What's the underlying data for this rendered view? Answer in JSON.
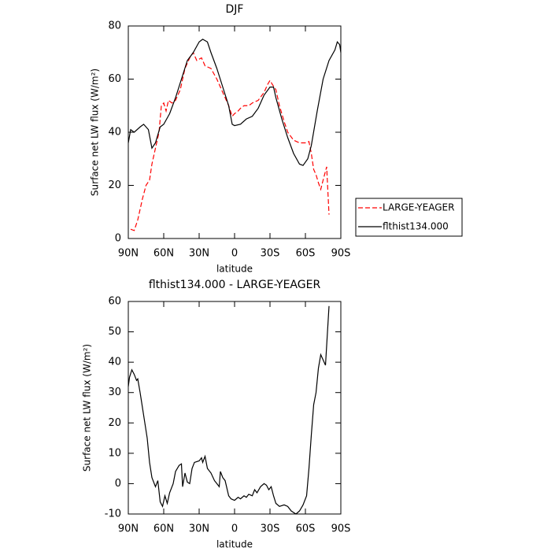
{
  "chart_data": [
    {
      "type": "line",
      "title": "DJF",
      "x_label": "latitude",
      "y_label": "Surface net LW flux (W/m²)",
      "xlim": [
        90,
        -90
      ],
      "ylim": [
        0,
        80
      ],
      "xticks": [
        {
          "value": 90,
          "label": "90N"
        },
        {
          "value": 60,
          "label": "60N"
        },
        {
          "value": 30,
          "label": "30N"
        },
        0,
        {
          "value": -30,
          "label": "30S"
        },
        {
          "value": -60,
          "label": "60S"
        },
        {
          "value": -90,
          "label": "90S"
        }
      ],
      "yticks": [
        0,
        20,
        40,
        60,
        80
      ],
      "series": [
        {
          "name": "LARGE-YEAGER",
          "color": "#ff0000",
          "style": "dashed",
          "x": [
            88,
            85,
            82,
            78,
            75,
            72,
            70,
            67,
            64,
            62,
            60,
            58,
            56,
            53,
            50,
            46,
            42,
            38,
            35,
            32,
            28,
            25,
            20,
            15,
            10,
            5,
            2,
            0,
            -3,
            -5,
            -8,
            -12,
            -15,
            -20,
            -25,
            -28,
            -30,
            -32,
            -35,
            -38,
            -42,
            -45,
            -50,
            -55,
            -60,
            -63,
            -65,
            -67,
            -69,
            -71,
            -73,
            -75,
            -78,
            -80
          ],
          "values": [
            3.5,
            3,
            7,
            15,
            20,
            22,
            28,
            34,
            40,
            50,
            51,
            48,
            52,
            51,
            52,
            56,
            64,
            68,
            70,
            67,
            68,
            65,
            64,
            60,
            55,
            50,
            46,
            47,
            48,
            49,
            50,
            50,
            51,
            52,
            55,
            58,
            59.5,
            58,
            56,
            50,
            44,
            40,
            37,
            36,
            36,
            36.5,
            32,
            26,
            24,
            21,
            18.5,
            22,
            27,
            9
          ]
        },
        {
          "name": "flthist134.000",
          "color": "#000000",
          "style": "solid",
          "x": [
            90,
            88,
            85,
            80,
            77,
            73,
            70,
            67,
            63,
            60,
            55,
            50,
            45,
            40,
            35,
            30,
            27,
            23,
            20,
            15,
            10,
            5,
            2,
            0,
            -5,
            -10,
            -15,
            -20,
            -25,
            -30,
            -33,
            -35,
            -40,
            -45,
            -50,
            -55,
            -58,
            -62,
            -65,
            -70,
            -75,
            -80,
            -85,
            -87,
            -89,
            -90
          ],
          "values": [
            36,
            41,
            40,
            42,
            43,
            41,
            34,
            36,
            42,
            43,
            47,
            53,
            60,
            67,
            70,
            74,
            75,
            74,
            70,
            64,
            57,
            50,
            43,
            42.5,
            43,
            45,
            46,
            49,
            54,
            57,
            57,
            53,
            45,
            38,
            32,
            28,
            27.5,
            30,
            35,
            48,
            60,
            67,
            71,
            74,
            73,
            70
          ]
        }
      ]
    },
    {
      "type": "line",
      "title": "flthist134.000 - LARGE-YEAGER",
      "x_label": "latitude",
      "y_label": "Surface net LW flux (W/m²)",
      "xlim": [
        90,
        -90
      ],
      "ylim": [
        -10,
        60
      ],
      "xticks": [
        {
          "value": 90,
          "label": "90N"
        },
        {
          "value": 60,
          "label": "60N"
        },
        {
          "value": 30,
          "label": "30N"
        },
        0,
        {
          "value": -30,
          "label": "30S"
        },
        {
          "value": -60,
          "label": "60S"
        },
        {
          "value": -90,
          "label": "90S"
        }
      ],
      "yticks": [
        -10,
        0,
        10,
        20,
        30,
        40,
        50,
        60
      ],
      "color": "#000000",
      "style": "solid",
      "x": [
        90,
        89,
        87,
        85,
        83,
        82,
        80,
        78,
        76,
        74,
        72,
        70,
        67,
        65,
        63,
        61,
        59,
        57,
        55,
        52,
        50,
        47,
        45,
        44,
        42,
        40,
        38,
        36,
        34,
        30,
        28,
        27,
        25,
        23,
        20,
        17,
        15,
        13,
        12,
        10,
        8,
        5,
        3,
        0,
        -3,
        -5,
        -8,
        -10,
        -12,
        -15,
        -17,
        -19,
        -22,
        -25,
        -27,
        -29,
        -31,
        -33,
        -35,
        -38,
        -42,
        -45,
        -48,
        -50,
        -52,
        -55,
        -58,
        -61,
        -63,
        -65,
        -67,
        -69,
        -71,
        -73,
        -77,
        -80
      ],
      "values": [
        32,
        35,
        37.5,
        36,
        34,
        34.5,
        30,
        25,
        20,
        15,
        7,
        2,
        -1,
        1,
        -6,
        -7.5,
        -4,
        -6.5,
        -3,
        0,
        4,
        6,
        6.5,
        -1,
        3.5,
        0.5,
        0,
        5,
        7,
        7.5,
        8.5,
        7,
        9,
        5,
        3.5,
        1,
        0,
        -1,
        4,
        2,
        1,
        -4,
        -5,
        -5.5,
        -4.5,
        -5,
        -4,
        -4.5,
        -3.5,
        -4,
        -2,
        -3,
        -1,
        0,
        -0.5,
        -2,
        -1,
        -4,
        -6.5,
        -7.5,
        -7,
        -7.5,
        -9,
        -9.5,
        -10,
        -9,
        -7,
        -4,
        5,
        16,
        26,
        30,
        38,
        42.5,
        39,
        58.5
      ]
    }
  ]
}
